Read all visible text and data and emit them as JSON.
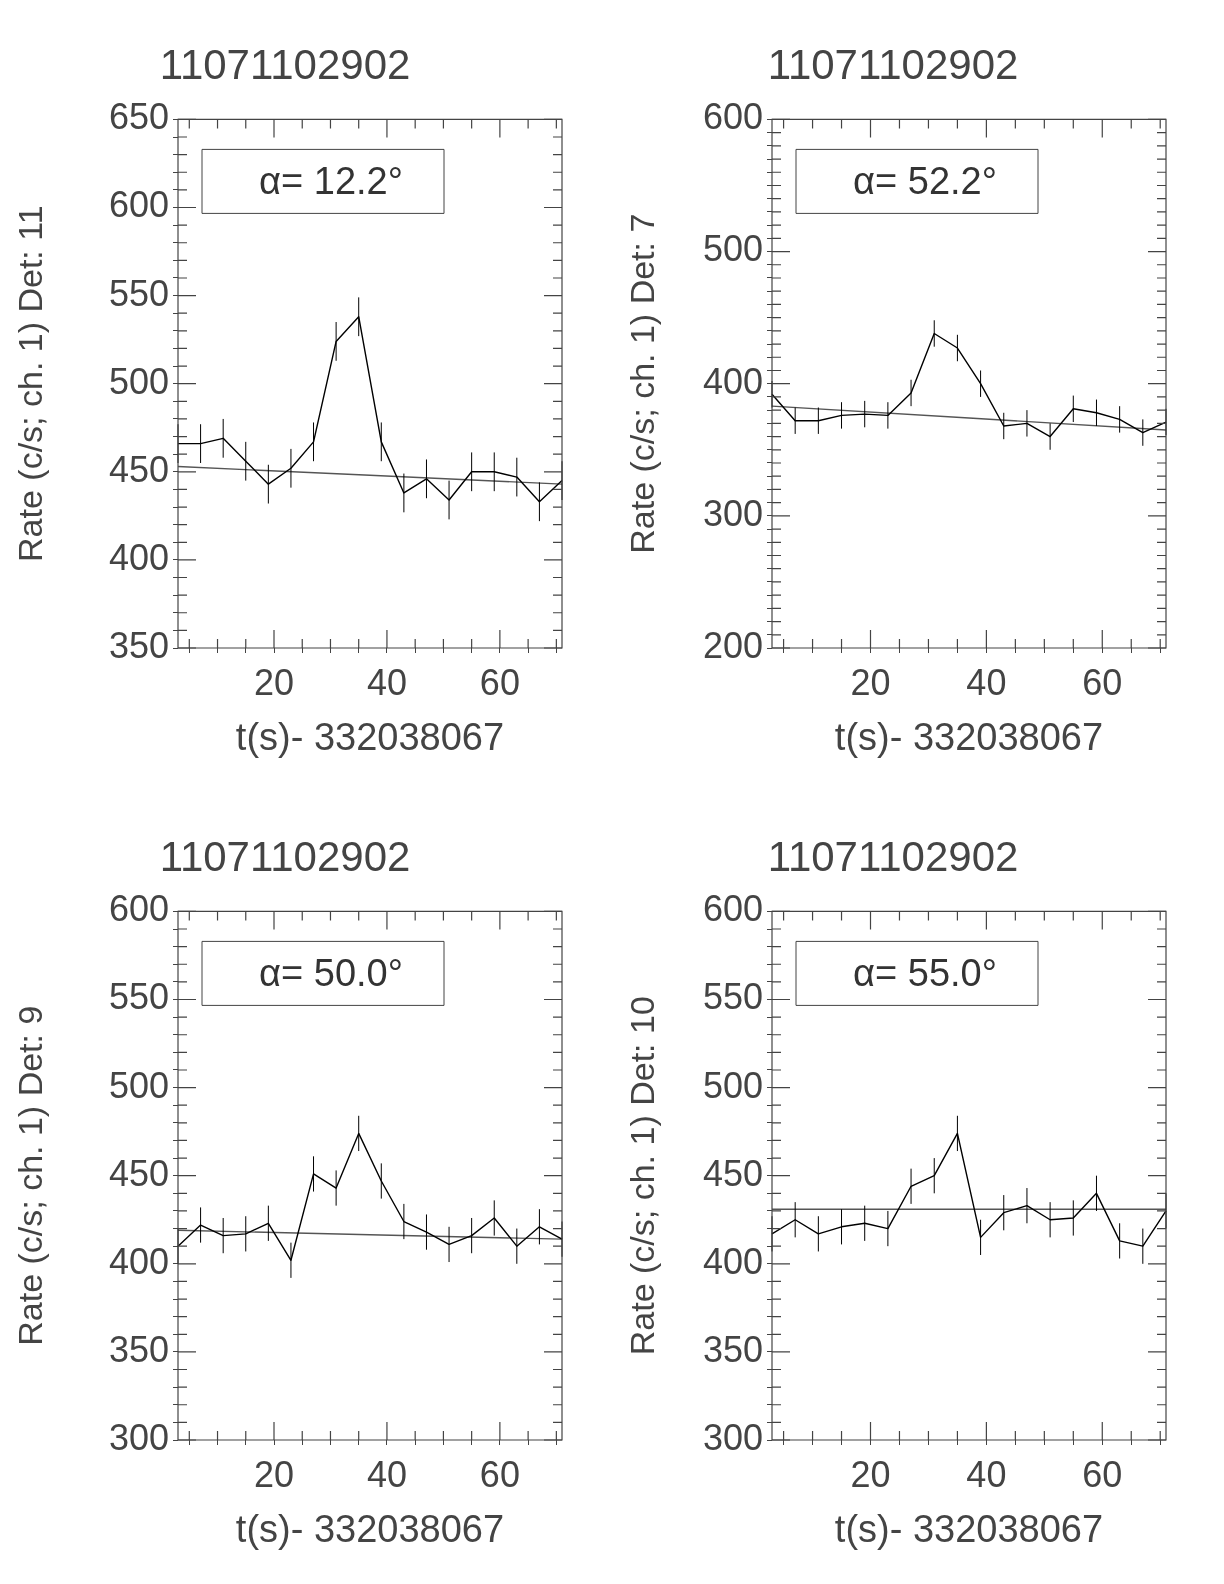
{
  "chart_data": [
    {
      "type": "line",
      "title": "11071102902",
      "xlabel": "t(s)- 332038067",
      "ylabel": "Rate (c/s; ch. 1) Det: 11",
      "annotations": [
        "α= 12.2°"
      ],
      "x": [
        3,
        7,
        11,
        15,
        19,
        23,
        27,
        31,
        35,
        39,
        43,
        47,
        51,
        55,
        59,
        63,
        67,
        71
      ],
      "series": [
        {
          "color": "#000000",
          "values": [
            466,
            466,
            469,
            456,
            443,
            452,
            467,
            524,
            538,
            467,
            438,
            446,
            434,
            450,
            450,
            447,
            433,
            445
          ],
          "errors": [
            11,
            11,
            11,
            11,
            11,
            11,
            11,
            11,
            11,
            11,
            11,
            11,
            11,
            11,
            11,
            11,
            11,
            11
          ]
        },
        {
          "type": "line",
          "color": "#555555",
          "x": [
            3,
            37,
            71
          ],
          "values": [
            453,
            448,
            443
          ]
        }
      ],
      "xlim": [
        3,
        71
      ],
      "xticks": [
        {
          "value": 5,
          "label": null
        },
        {
          "value": 10,
          "label": null
        },
        {
          "value": 15,
          "label": null
        },
        20,
        {
          "value": 25,
          "label": null
        },
        {
          "value": 30,
          "label": null
        },
        {
          "value": 35,
          "label": null
        },
        40,
        {
          "value": 45,
          "label": null
        },
        {
          "value": 50,
          "label": null
        },
        {
          "value": 55,
          "label": null
        },
        60,
        {
          "value": 65,
          "label": null
        },
        {
          "value": 70,
          "label": null
        }
      ],
      "ylim": [
        350,
        650
      ],
      "yticks": [
        350,
        {
          "value": 360,
          "label": null
        },
        {
          "value": 370,
          "label": null
        },
        {
          "value": 380,
          "label": null
        },
        {
          "value": 390,
          "label": null
        },
        400,
        {
          "value": 410,
          "label": null
        },
        {
          "value": 420,
          "label": null
        },
        {
          "value": 430,
          "label": null
        },
        {
          "value": 440,
          "label": null
        },
        450,
        {
          "value": 460,
          "label": null
        },
        {
          "value": 470,
          "label": null
        },
        {
          "value": 480,
          "label": null
        },
        {
          "value": 490,
          "label": null
        },
        500,
        {
          "value": 510,
          "label": null
        },
        {
          "value": 520,
          "label": null
        },
        {
          "value": 530,
          "label": null
        },
        {
          "value": 540,
          "label": null
        },
        550,
        {
          "value": 560,
          "label": null
        },
        {
          "value": 570,
          "label": null
        },
        {
          "value": 580,
          "label": null
        },
        {
          "value": 590,
          "label": null
        },
        600,
        {
          "value": 610,
          "label": null
        },
        {
          "value": 620,
          "label": null
        },
        {
          "value": 630,
          "label": null
        },
        {
          "value": 640,
          "label": null
        },
        650
      ]
    },
    {
      "type": "line",
      "title": "11071102902",
      "xlabel": "t(s)- 332038067",
      "ylabel": "Rate (c/s; ch. 1) Det: 7",
      "annotations": [
        "α= 52.2°"
      ],
      "x": [
        3,
        7,
        11,
        15,
        19,
        23,
        27,
        31,
        35,
        39,
        43,
        47,
        51,
        55,
        59,
        63,
        67,
        71
      ],
      "series": [
        {
          "color": "#000000",
          "values": [
            392,
            372,
            372,
            376,
            377,
            376,
            393,
            438,
            427,
            400,
            368,
            370,
            360,
            381,
            378,
            373,
            363,
            371
          ],
          "errors": [
            10,
            10,
            10,
            10,
            10,
            10,
            10,
            10,
            10,
            10,
            10,
            10,
            10,
            10,
            10,
            10,
            10,
            10
          ]
        },
        {
          "type": "line",
          "color": "#555555",
          "x": [
            3,
            37,
            71
          ],
          "values": [
            383,
            374,
            365
          ]
        }
      ],
      "xlim": [
        3,
        71
      ],
      "xticks": [
        {
          "value": 5,
          "label": null
        },
        {
          "value": 10,
          "label": null
        },
        {
          "value": 15,
          "label": null
        },
        20,
        {
          "value": 25,
          "label": null
        },
        {
          "value": 30,
          "label": null
        },
        {
          "value": 35,
          "label": null
        },
        40,
        {
          "value": 45,
          "label": null
        },
        {
          "value": 50,
          "label": null
        },
        {
          "value": 55,
          "label": null
        },
        60,
        {
          "value": 65,
          "label": null
        },
        {
          "value": 70,
          "label": null
        }
      ],
      "ylim": [
        200,
        600
      ],
      "yticks": [
        200,
        {
          "value": 210,
          "label": null
        },
        {
          "value": 220,
          "label": null
        },
        {
          "value": 230,
          "label": null
        },
        {
          "value": 240,
          "label": null
        },
        {
          "value": 250,
          "label": null
        },
        {
          "value": 260,
          "label": null
        },
        {
          "value": 270,
          "label": null
        },
        {
          "value": 280,
          "label": null
        },
        {
          "value": 290,
          "label": null
        },
        300,
        {
          "value": 310,
          "label": null
        },
        {
          "value": 320,
          "label": null
        },
        {
          "value": 330,
          "label": null
        },
        {
          "value": 340,
          "label": null
        },
        {
          "value": 350,
          "label": null
        },
        {
          "value": 360,
          "label": null
        },
        {
          "value": 370,
          "label": null
        },
        {
          "value": 380,
          "label": null
        },
        {
          "value": 390,
          "label": null
        },
        400,
        {
          "value": 410,
          "label": null
        },
        {
          "value": 420,
          "label": null
        },
        {
          "value": 430,
          "label": null
        },
        {
          "value": 440,
          "label": null
        },
        {
          "value": 450,
          "label": null
        },
        {
          "value": 460,
          "label": null
        },
        {
          "value": 470,
          "label": null
        },
        {
          "value": 480,
          "label": null
        },
        {
          "value": 490,
          "label": null
        },
        500,
        {
          "value": 510,
          "label": null
        },
        {
          "value": 520,
          "label": null
        },
        {
          "value": 530,
          "label": null
        },
        {
          "value": 540,
          "label": null
        },
        {
          "value": 550,
          "label": null
        },
        {
          "value": 560,
          "label": null
        },
        {
          "value": 570,
          "label": null
        },
        {
          "value": 580,
          "label": null
        },
        {
          "value": 590,
          "label": null
        },
        600
      ]
    },
    {
      "type": "line",
      "title": "11071102902",
      "xlabel": "t(s)- 332038067",
      "ylabel": "Rate (c/s; ch. 1) Det: 9",
      "annotations": [
        "α= 50.0°"
      ],
      "x": [
        3,
        7,
        11,
        15,
        19,
        23,
        27,
        31,
        35,
        39,
        43,
        47,
        51,
        55,
        59,
        63,
        67,
        71
      ],
      "series": [
        {
          "color": "#000000",
          "values": [
            410,
            422,
            416,
            417,
            423,
            402,
            451,
            443,
            474,
            447,
            424,
            418,
            411,
            416,
            426,
            410,
            421,
            414
          ],
          "errors": [
            10,
            10,
            10,
            10,
            10,
            10,
            10,
            10,
            10,
            10,
            10,
            10,
            10,
            10,
            10,
            10,
            10,
            10
          ]
        },
        {
          "type": "line",
          "color": "#555555",
          "x": [
            3,
            37,
            71
          ],
          "values": [
            419,
            416.5,
            414
          ]
        }
      ],
      "xlim": [
        3,
        71
      ],
      "xticks": [
        {
          "value": 5,
          "label": null
        },
        {
          "value": 10,
          "label": null
        },
        {
          "value": 15,
          "label": null
        },
        20,
        {
          "value": 25,
          "label": null
        },
        {
          "value": 30,
          "label": null
        },
        {
          "value": 35,
          "label": null
        },
        40,
        {
          "value": 45,
          "label": null
        },
        {
          "value": 50,
          "label": null
        },
        {
          "value": 55,
          "label": null
        },
        60,
        {
          "value": 65,
          "label": null
        },
        {
          "value": 70,
          "label": null
        }
      ],
      "ylim": [
        300,
        600
      ],
      "yticks": [
        300,
        {
          "value": 310,
          "label": null
        },
        {
          "value": 320,
          "label": null
        },
        {
          "value": 330,
          "label": null
        },
        {
          "value": 340,
          "label": null
        },
        350,
        {
          "value": 360,
          "label": null
        },
        {
          "value": 370,
          "label": null
        },
        {
          "value": 380,
          "label": null
        },
        {
          "value": 390,
          "label": null
        },
        400,
        {
          "value": 410,
          "label": null
        },
        {
          "value": 420,
          "label": null
        },
        {
          "value": 430,
          "label": null
        },
        {
          "value": 440,
          "label": null
        },
        450,
        {
          "value": 460,
          "label": null
        },
        {
          "value": 470,
          "label": null
        },
        {
          "value": 480,
          "label": null
        },
        {
          "value": 490,
          "label": null
        },
        500,
        {
          "value": 510,
          "label": null
        },
        {
          "value": 520,
          "label": null
        },
        {
          "value": 530,
          "label": null
        },
        {
          "value": 540,
          "label": null
        },
        550,
        {
          "value": 560,
          "label": null
        },
        {
          "value": 570,
          "label": null
        },
        {
          "value": 580,
          "label": null
        },
        {
          "value": 590,
          "label": null
        },
        600
      ]
    },
    {
      "type": "line",
      "title": "11071102902",
      "xlabel": "t(s)- 332038067",
      "ylabel": "Rate (c/s; ch. 1) Det: 10",
      "annotations": [
        "α= 55.0°"
      ],
      "x": [
        3,
        7,
        11,
        15,
        19,
        23,
        27,
        31,
        35,
        39,
        43,
        47,
        51,
        55,
        59,
        63,
        67,
        71
      ],
      "series": [
        {
          "color": "#000000",
          "values": [
            417,
            425,
            417,
            421,
            423,
            420,
            444,
            450,
            474,
            415,
            429,
            433,
            425,
            426,
            440,
            413,
            410,
            430
          ],
          "errors": [
            10,
            10,
            10,
            10,
            10,
            10,
            10,
            10,
            10,
            10,
            10,
            10,
            10,
            10,
            10,
            10,
            10,
            10
          ]
        },
        {
          "type": "line",
          "color": "#555555",
          "x": [
            3,
            37,
            71
          ],
          "values": [
            431,
            431,
            431
          ]
        }
      ],
      "xlim": [
        3,
        71
      ],
      "xticks": [
        {
          "value": 5,
          "label": null
        },
        {
          "value": 10,
          "label": null
        },
        {
          "value": 15,
          "label": null
        },
        20,
        {
          "value": 25,
          "label": null
        },
        {
          "value": 30,
          "label": null
        },
        {
          "value": 35,
          "label": null
        },
        40,
        {
          "value": 45,
          "label": null
        },
        {
          "value": 50,
          "label": null
        },
        {
          "value": 55,
          "label": null
        },
        60,
        {
          "value": 65,
          "label": null
        },
        {
          "value": 70,
          "label": null
        }
      ],
      "ylim": [
        300,
        600
      ],
      "yticks": [
        300,
        {
          "value": 310,
          "label": null
        },
        {
          "value": 320,
          "label": null
        },
        {
          "value": 330,
          "label": null
        },
        {
          "value": 340,
          "label": null
        },
        350,
        {
          "value": 360,
          "label": null
        },
        {
          "value": 370,
          "label": null
        },
        {
          "value": 380,
          "label": null
        },
        {
          "value": 390,
          "label": null
        },
        400,
        {
          "value": 410,
          "label": null
        },
        {
          "value": 420,
          "label": null
        },
        {
          "value": 430,
          "label": null
        },
        {
          "value": 440,
          "label": null
        },
        450,
        {
          "value": 460,
          "label": null
        },
        {
          "value": 470,
          "label": null
        },
        {
          "value": 480,
          "label": null
        },
        {
          "value": 490,
          "label": null
        },
        500,
        {
          "value": 510,
          "label": null
        },
        {
          "value": 520,
          "label": null
        },
        {
          "value": 530,
          "label": null
        },
        {
          "value": 540,
          "label": null
        },
        550,
        {
          "value": 560,
          "label": null
        },
        {
          "value": 570,
          "label": null
        },
        {
          "value": 580,
          "label": null
        },
        {
          "value": 590,
          "label": null
        },
        600
      ]
    }
  ]
}
